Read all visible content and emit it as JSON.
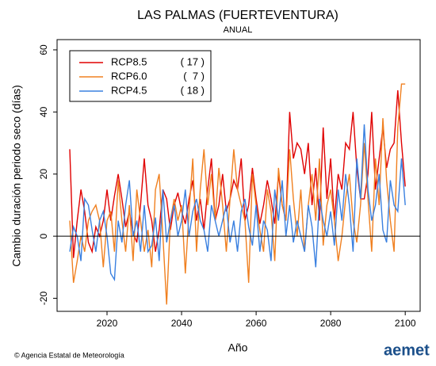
{
  "chart_data": {
    "type": "line",
    "title": "LAS PALMAS (FUERTEVENTURA)",
    "subtitle": "ANUAL",
    "y_label": "Cambio duración periodo seco (días)",
    "x_label": "Año",
    "footer": "© Agencia Estatal de Meteorología",
    "logo": "aemet",
    "xlim": [
      2006.6,
      2104
    ],
    "ylim": [
      -24.2,
      63.3
    ],
    "xticks": [
      2020,
      2040,
      2060,
      2080,
      2100
    ],
    "yticks": [
      -20,
      0,
      20,
      40,
      60
    ],
    "reference_line": 0,
    "legend_position": "upper left",
    "x": [
      2010,
      2011,
      2012,
      2013,
      2014,
      2015,
      2016,
      2017,
      2018,
      2019,
      2020,
      2021,
      2022,
      2023,
      2024,
      2025,
      2026,
      2027,
      2028,
      2029,
      2030,
      2031,
      2032,
      2033,
      2034,
      2035,
      2036,
      2037,
      2038,
      2039,
      2040,
      2041,
      2042,
      2043,
      2044,
      2045,
      2046,
      2047,
      2048,
      2049,
      2050,
      2051,
      2052,
      2053,
      2054,
      2055,
      2056,
      2057,
      2058,
      2059,
      2060,
      2061,
      2062,
      2063,
      2064,
      2065,
      2066,
      2067,
      2068,
      2069,
      2070,
      2071,
      2072,
      2073,
      2074,
      2075,
      2076,
      2077,
      2078,
      2079,
      2080,
      2081,
      2082,
      2083,
      2084,
      2085,
      2086,
      2087,
      2088,
      2089,
      2090,
      2091,
      2092,
      2093,
      2094,
      2095,
      2096,
      2097,
      2098,
      2099,
      2100
    ],
    "series": [
      {
        "name": "RCP8.5",
        "models": "( 17 )",
        "color": "#e00000",
        "values": [
          28,
          -7,
          5,
          15,
          8,
          -2,
          -5,
          3,
          0,
          5,
          15,
          5,
          13,
          20,
          12,
          3,
          8,
          1,
          -2,
          10,
          25,
          10,
          5,
          -5,
          2,
          15,
          12,
          2,
          10,
          14,
          8,
          4,
          12,
          18,
          5,
          12,
          2,
          15,
          25,
          5,
          10,
          20,
          8,
          12,
          18,
          15,
          25,
          5,
          10,
          22,
          12,
          4,
          10,
          18,
          12,
          4,
          20,
          10,
          5,
          40,
          25,
          30,
          28,
          20,
          30,
          10,
          22,
          5,
          35,
          12,
          25,
          5,
          20,
          15,
          30,
          28,
          40,
          22,
          12,
          12,
          20,
          40,
          15,
          25,
          35,
          22,
          28,
          30,
          47,
          30,
          16
        ]
      },
      {
        "name": "RCP6.0",
        "models": "(  7 )",
        "color": "#f08020",
        "values": [
          5,
          -15,
          -8,
          0,
          -5,
          5,
          8,
          10,
          5,
          -10,
          5,
          8,
          -5,
          18,
          5,
          -5,
          10,
          -8,
          15,
          5,
          -5,
          2,
          -10,
          15,
          20,
          0,
          -22,
          5,
          12,
          5,
          10,
          -12,
          8,
          25,
          -5,
          15,
          28,
          10,
          20,
          5,
          22,
          10,
          -5,
          12,
          28,
          15,
          10,
          5,
          -15,
          20,
          10,
          2,
          -5,
          15,
          8,
          -8,
          22,
          10,
          5,
          28,
          12,
          0,
          15,
          -5,
          10,
          20,
          5,
          25,
          -3,
          10,
          15,
          5,
          -8,
          0,
          12,
          20,
          5,
          -2,
          10,
          30,
          12,
          -5,
          25,
          10,
          38,
          18,
          5,
          -5,
          35,
          49,
          49
        ]
      },
      {
        "name": "RCP4.5",
        "models": "( 18 )",
        "color": "#3a80e0",
        "values": [
          -5,
          3,
          0,
          -8,
          12,
          10,
          2,
          -5,
          5,
          8,
          0,
          -12,
          -14,
          5,
          -2,
          10,
          18,
          0,
          5,
          -5,
          10,
          -5,
          -3,
          6,
          -8,
          15,
          -2,
          5,
          10,
          0,
          5,
          15,
          0,
          8,
          12,
          5,
          2,
          -5,
          10,
          5,
          0,
          5,
          10,
          -2,
          5,
          -5,
          8,
          12,
          3,
          -3,
          10,
          -5,
          5,
          2,
          -8,
          15,
          5,
          18,
          0,
          10,
          -2,
          5,
          0,
          -5,
          10,
          3,
          -10,
          12,
          5,
          0,
          8,
          -3,
          15,
          5,
          20,
          10,
          -5,
          25,
          12,
          36,
          15,
          5,
          10,
          20,
          2,
          -2,
          18,
          10,
          8,
          25,
          10
        ]
      }
    ]
  }
}
